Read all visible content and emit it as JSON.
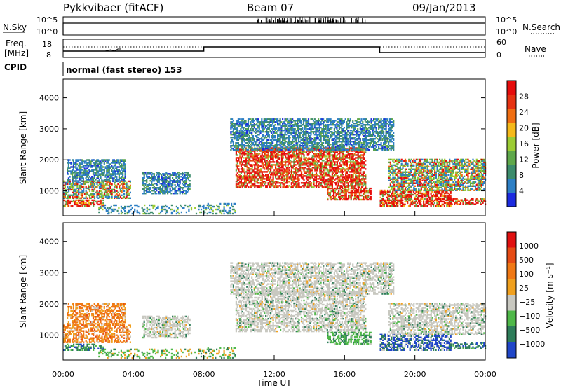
{
  "header": {
    "radar": "Pykkvibaer (fitACF)",
    "beam": "Beam 07",
    "date": "09/Jan/2013"
  },
  "strip_panels": {
    "nsky": {
      "left_label": "N.Sky",
      "right_label": "N.Search",
      "left_ticks": [
        "10^5",
        "10^0"
      ],
      "right_ticks": [
        "10^5",
        "10^0"
      ]
    },
    "freq": {
      "left_label": "Freq.",
      "left_unit": "[MHz]",
      "left_ticks": [
        "18",
        "8"
      ],
      "right_label": "Nave",
      "right_ticks": [
        "60",
        "0"
      ],
      "steps_utc_hours": [
        8,
        18
      ]
    },
    "cpid": {
      "label": "CPID",
      "text": "normal (fast stereo) 153"
    }
  },
  "chart_data": [
    {
      "type": "heatmap",
      "name": "power",
      "xlabel": "",
      "ylabel": "Slant Range [km]",
      "xlim": [
        0,
        24
      ],
      "ylim": [
        200,
        4600
      ],
      "yticks": [
        "1000",
        "2000",
        "3000",
        "4000"
      ],
      "colorbar": {
        "label": "Power [dB]",
        "ticks": [
          "4",
          "8",
          "12",
          "16",
          "20",
          "24",
          "28"
        ],
        "colors": [
          "#1c2be0",
          "#2d7fc5",
          "#3c8c6c",
          "#5fa84b",
          "#9ccc34",
          "#f5b91a",
          "#f06e12",
          "#e63212",
          "#e60c0c"
        ]
      }
    },
    {
      "type": "heatmap",
      "name": "velocity",
      "xlabel": "Time UT",
      "ylabel": "Slant Range [km]",
      "xlim": [
        0,
        24
      ],
      "ylim": [
        200,
        4600
      ],
      "yticks": [
        "1000",
        "2000",
        "3000",
        "4000"
      ],
      "xticks": [
        "00:00",
        "04:00",
        "08:00",
        "12:00",
        "16:00",
        "20:00",
        "00:00"
      ],
      "colorbar": {
        "label": "Velocity [m s⁻¹]",
        "ticks": [
          "1000",
          "500",
          "100",
          "25",
          "−25",
          "−100",
          "−500",
          "−1000"
        ],
        "colors": [
          "#2046c8",
          "#2e7d5a",
          "#4fb849",
          "#c8c8c0",
          "#f0a01e",
          "#f07814",
          "#e64b14",
          "#e01010"
        ]
      }
    }
  ]
}
